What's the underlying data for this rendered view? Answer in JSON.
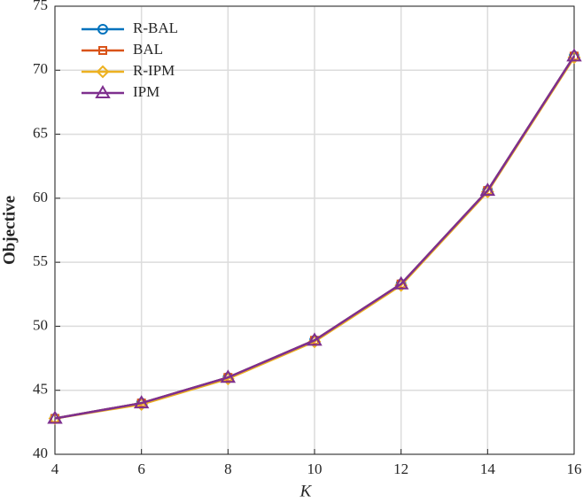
{
  "chart_data": {
    "type": "line",
    "x_label": "K",
    "y_label": "Objective",
    "x": [
      4,
      6,
      8,
      10,
      12,
      14,
      16
    ],
    "series": [
      {
        "name": "R-BAL",
        "color": "#0072BD",
        "marker": "circle",
        "values": [
          42.8,
          44.0,
          46.0,
          48.9,
          53.3,
          60.6,
          71.1
        ]
      },
      {
        "name": "BAL",
        "color": "#D95319",
        "marker": "square",
        "values": [
          42.8,
          44.0,
          46.0,
          48.9,
          53.3,
          60.6,
          71.1
        ]
      },
      {
        "name": "R-IPM",
        "color": "#EDB120",
        "marker": "diamond",
        "values": [
          42.8,
          43.9,
          45.9,
          48.8,
          53.2,
          60.5,
          71.0
        ]
      },
      {
        "name": "IPM",
        "color": "#7E2F8E",
        "marker": "triangle",
        "values": [
          42.8,
          44.0,
          46.0,
          48.9,
          53.3,
          60.6,
          71.1
        ]
      }
    ],
    "xlim": [
      4,
      16
    ],
    "xticks": [
      4,
      6,
      8,
      10,
      12,
      14,
      16
    ],
    "ylim": [
      40,
      75
    ],
    "yticks": [
      40,
      45,
      50,
      55,
      60,
      65,
      70,
      75
    ],
    "grid": true,
    "legend": "upper-left"
  }
}
